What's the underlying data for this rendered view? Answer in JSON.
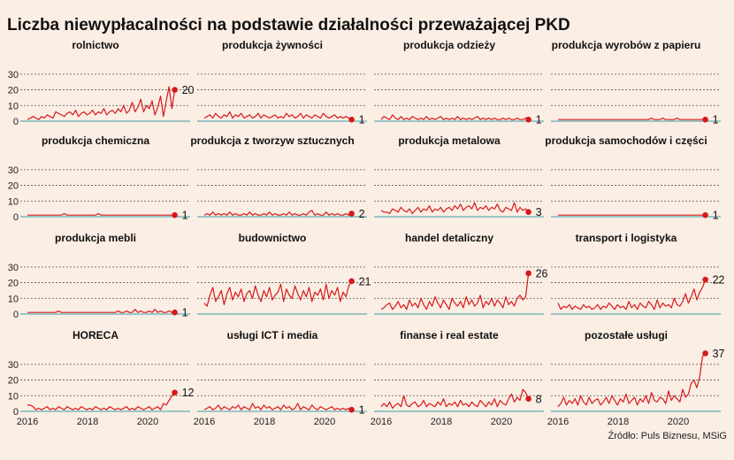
{
  "title": "Liczba niewypłacalności na podstawie działalności przeważającej PKD",
  "source": "Źródło: Puls Biznesu, MSiG",
  "colors": {
    "background": "#fbeee4",
    "line": "#d7191c",
    "baseline": "#3a9fa6",
    "grid": "#555555",
    "text": "#222222"
  },
  "chart_data": {
    "type": "line",
    "layout": "small-multiples 4x4",
    "shared_axes": true,
    "ylim": [
      0,
      35
    ],
    "y_ticks": [
      0,
      10,
      20,
      30
    ],
    "xlim": [
      2016,
      2021
    ],
    "x_ticks": [
      "2016",
      "2018",
      "2020"
    ],
    "grid": "horizontal dashed",
    "panels": [
      {
        "name": "rolnictwo",
        "last_label": "20",
        "values": [
          1,
          2,
          3,
          2,
          1,
          3,
          2,
          4,
          3,
          2,
          6,
          5,
          4,
          3,
          5,
          6,
          4,
          7,
          3,
          5,
          6,
          4,
          5,
          7,
          4,
          6,
          5,
          8,
          4,
          6,
          7,
          5,
          8,
          6,
          10,
          5,
          7,
          12,
          6,
          9,
          14,
          6,
          10,
          8,
          13,
          4,
          9,
          16,
          3,
          13,
          22,
          8,
          20
        ]
      },
      {
        "name": "produkcja żywności",
        "last_label": "1",
        "values": [
          2,
          3,
          4,
          2,
          5,
          3,
          2,
          4,
          3,
          6,
          2,
          4,
          3,
          5,
          2,
          3,
          4,
          2,
          3,
          5,
          2,
          4,
          3,
          2,
          3,
          4,
          2,
          3,
          2,
          5,
          3,
          4,
          2,
          3,
          5,
          2,
          4,
          3,
          2,
          4,
          3,
          2,
          5,
          3,
          2,
          3,
          4,
          2,
          3,
          2,
          3,
          2,
          1
        ]
      },
      {
        "name": "produkcja odzieży",
        "last_label": "1",
        "values": [
          1,
          3,
          2,
          1,
          4,
          2,
          1,
          3,
          1,
          2,
          1,
          3,
          2,
          1,
          2,
          1,
          3,
          1,
          2,
          1,
          2,
          3,
          1,
          2,
          1,
          2,
          1,
          3,
          1,
          2,
          1,
          2,
          1,
          2,
          3,
          1,
          2,
          1,
          2,
          1,
          2,
          1,
          1,
          2,
          1,
          2,
          1,
          1,
          2,
          1,
          1,
          2,
          1
        ]
      },
      {
        "name": "produkcja wyrobów z papieru",
        "last_label": "1",
        "values": [
          1,
          1,
          1,
          1,
          1,
          1,
          1,
          1,
          1,
          1,
          1,
          1,
          1,
          1,
          1,
          1,
          1,
          1,
          1,
          1,
          1,
          1,
          1,
          1,
          1,
          1,
          1,
          1,
          1,
          1,
          1,
          1,
          1,
          2,
          1,
          1,
          1,
          2,
          1,
          1,
          1,
          1,
          2,
          1,
          1,
          1,
          1,
          1,
          1,
          1,
          1,
          1,
          1
        ]
      },
      {
        "name": "produkcja chemiczna",
        "last_label": "1",
        "values": [
          1,
          1,
          1,
          1,
          1,
          1,
          1,
          1,
          1,
          1,
          1,
          1,
          1,
          2,
          1,
          1,
          1,
          1,
          1,
          1,
          1,
          1,
          1,
          1,
          1,
          2,
          1,
          1,
          1,
          1,
          1,
          1,
          1,
          1,
          1,
          1,
          1,
          1,
          1,
          1,
          1,
          1,
          1,
          1,
          1,
          1,
          1,
          1,
          1,
          1,
          1,
          1,
          1
        ]
      },
      {
        "name": "produkcja z tworzyw sztucznych",
        "last_label": "2",
        "values": [
          1,
          2,
          1,
          3,
          1,
          2,
          1,
          2,
          1,
          3,
          1,
          2,
          1,
          1,
          2,
          1,
          3,
          1,
          2,
          1,
          1,
          2,
          1,
          3,
          1,
          2,
          1,
          1,
          2,
          1,
          3,
          1,
          2,
          1,
          1,
          2,
          1,
          3,
          4,
          1,
          2,
          1,
          1,
          3,
          1,
          2,
          1,
          2,
          1,
          1,
          2,
          1,
          2
        ]
      },
      {
        "name": "produkcja metalowa",
        "last_label": "3",
        "values": [
          4,
          3,
          3,
          2,
          5,
          4,
          3,
          6,
          4,
          3,
          5,
          2,
          4,
          6,
          3,
          5,
          4,
          7,
          3,
          5,
          4,
          6,
          3,
          5,
          6,
          4,
          7,
          5,
          8,
          4,
          6,
          7,
          5,
          9,
          4,
          6,
          5,
          7,
          4,
          6,
          5,
          8,
          4,
          3,
          6,
          5,
          4,
          9,
          3,
          6,
          4,
          5,
          3
        ]
      },
      {
        "name": "produkcja samochodów i części",
        "last_label": "1",
        "values": [
          1,
          1,
          1,
          1,
          1,
          1,
          1,
          1,
          1,
          1,
          1,
          1,
          1,
          1,
          1,
          1,
          1,
          1,
          1,
          1,
          1,
          1,
          1,
          1,
          1,
          1,
          1,
          1,
          1,
          1,
          1,
          1,
          1,
          1,
          1,
          1,
          1,
          1,
          1,
          1,
          1,
          1,
          1,
          1,
          1,
          1,
          1,
          1,
          1,
          1,
          1,
          1,
          1
        ]
      },
      {
        "name": "produkcja mebli",
        "last_label": "1",
        "values": [
          1,
          1,
          1,
          1,
          1,
          1,
          1,
          1,
          1,
          1,
          1,
          2,
          1,
          1,
          1,
          1,
          1,
          1,
          1,
          1,
          1,
          1,
          1,
          1,
          1,
          1,
          1,
          1,
          1,
          1,
          1,
          1,
          2,
          1,
          1,
          2,
          1,
          1,
          3,
          1,
          2,
          1,
          1,
          2,
          1,
          3,
          1,
          2,
          1,
          1,
          2,
          1,
          1
        ]
      },
      {
        "name": "budownictwo",
        "last_label": "21",
        "values": [
          7,
          5,
          12,
          17,
          8,
          11,
          15,
          6,
          13,
          17,
          9,
          14,
          11,
          16,
          8,
          13,
          15,
          10,
          18,
          12,
          8,
          15,
          11,
          17,
          9,
          12,
          14,
          19,
          8,
          16,
          12,
          10,
          18,
          13,
          9,
          15,
          11,
          17,
          8,
          14,
          12,
          16,
          9,
          19,
          10,
          15,
          12,
          17,
          8,
          14,
          11,
          18,
          21
        ]
      },
      {
        "name": "handel detaliczny",
        "last_label": "26",
        "values": [
          3,
          4,
          6,
          7,
          3,
          5,
          8,
          4,
          6,
          3,
          9,
          5,
          7,
          4,
          10,
          6,
          3,
          8,
          5,
          11,
          7,
          4,
          9,
          6,
          3,
          10,
          7,
          5,
          8,
          4,
          11,
          6,
          9,
          5,
          7,
          12,
          4,
          8,
          6,
          10,
          5,
          9,
          7,
          4,
          11,
          6,
          8,
          5,
          10,
          12,
          9,
          11,
          26
        ]
      },
      {
        "name": "transport i logistyka",
        "last_label": "22",
        "values": [
          7,
          3,
          5,
          4,
          6,
          3,
          5,
          4,
          3,
          6,
          4,
          5,
          3,
          4,
          6,
          3,
          5,
          4,
          7,
          5,
          3,
          6,
          4,
          5,
          3,
          8,
          4,
          6,
          3,
          7,
          5,
          4,
          8,
          6,
          3,
          9,
          4,
          7,
          5,
          6,
          4,
          10,
          6,
          5,
          8,
          13,
          7,
          11,
          16,
          9,
          14,
          17,
          22
        ]
      },
      {
        "name": "HORECA",
        "last_label": "12",
        "values": [
          4,
          4,
          3,
          1,
          2,
          1,
          2,
          3,
          1,
          2,
          1,
          3,
          2,
          1,
          3,
          2,
          1,
          2,
          1,
          3,
          2,
          1,
          2,
          1,
          3,
          2,
          1,
          2,
          1,
          3,
          2,
          1,
          2,
          1,
          2,
          3,
          1,
          2,
          1,
          3,
          2,
          1,
          2,
          3,
          1,
          2,
          3,
          1,
          5,
          4,
          7,
          10,
          12
        ]
      },
      {
        "name": "usługi ICT i media",
        "last_label": "1",
        "values": [
          1,
          2,
          3,
          1,
          2,
          4,
          1,
          3,
          2,
          1,
          3,
          2,
          4,
          1,
          3,
          2,
          1,
          5,
          2,
          3,
          1,
          4,
          2,
          3,
          1,
          2,
          3,
          1,
          4,
          2,
          3,
          1,
          2,
          5,
          1,
          3,
          2,
          1,
          4,
          2,
          1,
          3,
          2,
          1,
          2,
          3,
          1,
          2,
          1,
          2,
          1,
          2,
          1
        ]
      },
      {
        "name": "finanse i real estate",
        "last_label": "8",
        "values": [
          3,
          5,
          3,
          6,
          2,
          4,
          5,
          3,
          10,
          4,
          3,
          5,
          6,
          3,
          4,
          7,
          3,
          5,
          4,
          3,
          6,
          4,
          8,
          3,
          5,
          4,
          6,
          3,
          7,
          4,
          5,
          3,
          6,
          4,
          3,
          7,
          5,
          3,
          6,
          4,
          8,
          3,
          7,
          5,
          4,
          8,
          11,
          6,
          9,
          7,
          14,
          12,
          8
        ]
      },
      {
        "name": "pozostałe usługi",
        "last_label": "37",
        "values": [
          3,
          5,
          9,
          4,
          7,
          5,
          8,
          4,
          10,
          6,
          4,
          9,
          5,
          7,
          8,
          4,
          6,
          9,
          5,
          10,
          7,
          4,
          8,
          6,
          11,
          5,
          7,
          9,
          4,
          8,
          6,
          10,
          5,
          12,
          7,
          6,
          9,
          8,
          5,
          13,
          7,
          10,
          8,
          6,
          14,
          9,
          11,
          18,
          20,
          15,
          22,
          35,
          37
        ]
      }
    ]
  }
}
